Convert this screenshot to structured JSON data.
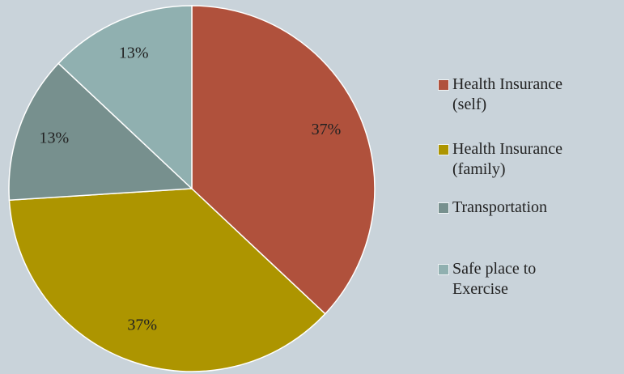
{
  "chart_data": {
    "type": "pie",
    "categories": [
      "Health Insurance (self)",
      "Health Insurance (family)",
      "Transportation",
      "Safe place to Exercise"
    ],
    "values": [
      37,
      37,
      13,
      13
    ],
    "value_labels": [
      "37%",
      "37%",
      "13%",
      "13%"
    ],
    "colors": [
      "#b0513c",
      "#ad9500",
      "#77908e",
      "#90b0b0"
    ],
    "legend": "right"
  }
}
